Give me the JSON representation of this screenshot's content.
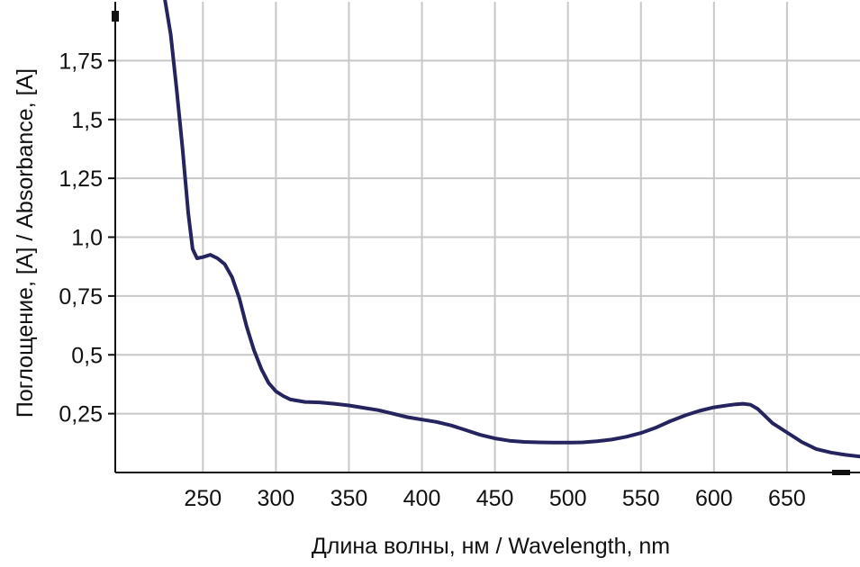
{
  "chart_data": {
    "type": "line",
    "title": "",
    "xlabel": "Длина волны, нм / Wavelength, nm",
    "ylabel": "Поглощение, [A] / Absorbance, [A]",
    "xlim": [
      190,
      700
    ],
    "ylim": [
      0,
      2.0
    ],
    "xticks": [
      250,
      300,
      350,
      400,
      450,
      500,
      550,
      600,
      650
    ],
    "xtick_labels": [
      "250",
      "300",
      "350",
      "400",
      "450",
      "500",
      "550",
      "600",
      "650"
    ],
    "yticks": [
      0.25,
      0.5,
      0.75,
      1.0,
      1.25,
      1.5,
      1.75
    ],
    "ytick_labels": [
      "0,25",
      "0,5",
      "0,75",
      "1,0",
      "1,25",
      "1,5",
      "1,75"
    ],
    "grid": true,
    "line_color": "#25245e",
    "grid_color": "#c8c8c8",
    "series": [
      {
        "x": [
          224,
          228,
          232,
          236,
          240,
          243,
          246,
          250,
          255,
          260,
          265,
          270,
          275,
          280,
          285,
          290,
          295,
          300,
          305,
          310,
          320,
          330,
          340,
          350,
          360,
          370,
          380,
          390,
          400,
          410,
          420,
          430,
          440,
          450,
          460,
          470,
          480,
          490,
          500,
          510,
          520,
          530,
          540,
          550,
          560,
          570,
          580,
          590,
          600,
          610,
          615,
          620,
          625,
          630,
          635,
          640,
          650,
          660,
          670,
          680,
          690,
          700
        ],
        "y": [
          2.01,
          1.86,
          1.63,
          1.38,
          1.1,
          0.95,
          0.91,
          0.915,
          0.925,
          0.91,
          0.885,
          0.83,
          0.74,
          0.62,
          0.52,
          0.44,
          0.38,
          0.345,
          0.325,
          0.31,
          0.3,
          0.298,
          0.292,
          0.285,
          0.275,
          0.265,
          0.25,
          0.235,
          0.225,
          0.215,
          0.2,
          0.18,
          0.16,
          0.145,
          0.135,
          0.13,
          0.128,
          0.127,
          0.127,
          0.128,
          0.133,
          0.14,
          0.152,
          0.168,
          0.19,
          0.218,
          0.242,
          0.262,
          0.277,
          0.286,
          0.29,
          0.292,
          0.288,
          0.27,
          0.24,
          0.21,
          0.17,
          0.13,
          0.1,
          0.085,
          0.075,
          0.068
        ]
      }
    ]
  }
}
